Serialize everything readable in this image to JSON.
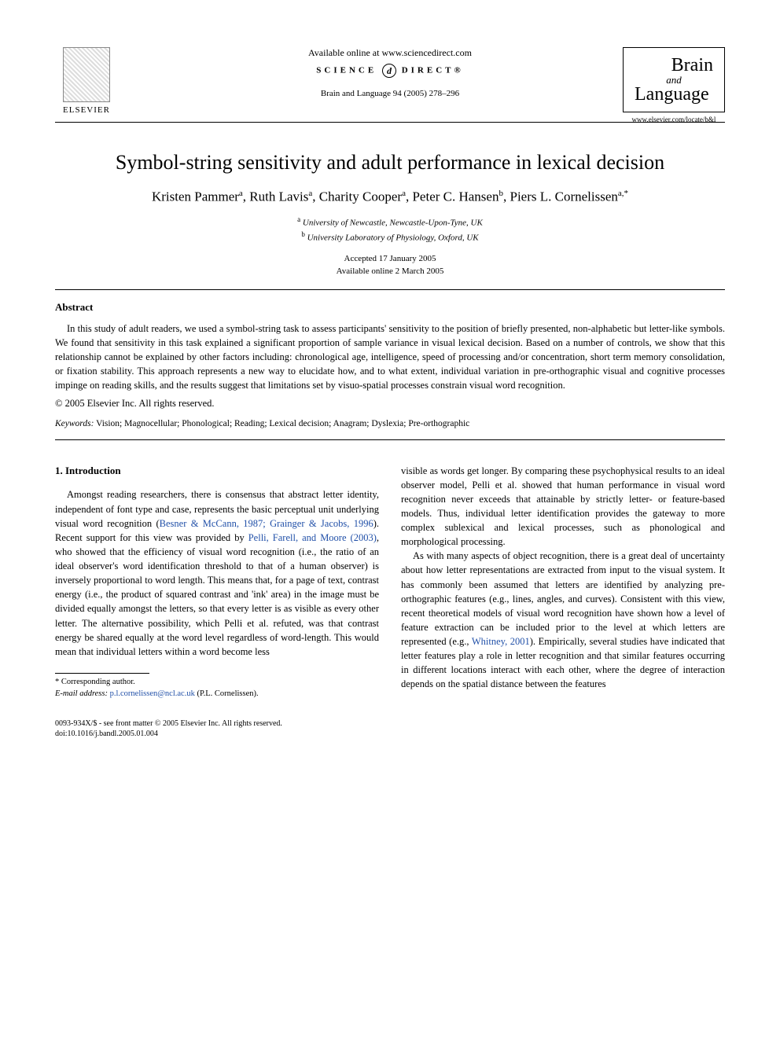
{
  "header": {
    "available_line": "Available online at www.sciencedirect.com",
    "sd_left": "SCIENCE",
    "sd_d": "d",
    "sd_right": "DIRECT®",
    "journal_ref": "Brain and Language 94 (2005) 278–296",
    "elsevier_name": "ELSEVIER",
    "journal_logo": {
      "brain": "Brain",
      "and": "and",
      "language": "Language"
    },
    "journal_url": "www.elsevier.com/locate/b&l"
  },
  "article": {
    "title": "Symbol-string sensitivity and adult performance in lexical decision",
    "authors_html": "Kristen Pammer<sup>a</sup>, Ruth Lavis<sup>a</sup>, Charity Cooper<sup>a</sup>, Peter C. Hansen<sup>b</sup>, Piers L. Cornelissen<sup>a,*</sup>",
    "aff_a": "<sup>a</sup> University of Newcastle, Newcastle-Upon-Tyne, UK",
    "aff_b": "<sup>b</sup> University Laboratory of Physiology, Oxford, UK",
    "accepted": "Accepted 17 January 2005",
    "online": "Available online 2 March 2005"
  },
  "abstract": {
    "heading": "Abstract",
    "body": "In this study of adult readers, we used a symbol-string task to assess participants' sensitivity to the position of briefly presented, non-alphabetic but letter-like symbols. We found that sensitivity in this task explained a significant proportion of sample variance in visual lexical decision. Based on a number of controls, we show that this relationship cannot be explained by other factors including: chronological age, intelligence, speed of processing and/or concentration, short term memory consolidation, or fixation stability. This approach represents a new way to elucidate how, and to what extent, individual variation in pre-orthographic visual and cognitive processes impinge on reading skills, and the results suggest that limitations set by visuo-spatial processes constrain visual word recognition.",
    "copyright": "© 2005 Elsevier Inc. All rights reserved."
  },
  "keywords": {
    "label": "Keywords:",
    "list": "Vision; Magnocellular; Phonological; Reading; Lexical decision; Anagram; Dyslexia; Pre-orthographic"
  },
  "intro": {
    "heading": "1. Introduction",
    "p1_a": "Amongst reading researchers, there is consensus that abstract letter identity, independent of font type and case, represents the basic perceptual unit underlying visual word recognition (",
    "p1_ref1": "Besner & McCann, 1987; Grainger & Jacobs, 1996",
    "p1_b": "). Recent support for this view was provided by ",
    "p1_ref2": "Pelli, Farell, and Moore (2003)",
    "p1_c": ", who showed that the efficiency of visual word recognition (i.e., the ratio of an ideal observer's word identification threshold to that of a human observer) is inversely proportional to word length. This means that, for a page of text, contrast energy (i.e., the product of squared contrast and 'ink' area) in the image must be divided equally amongst the letters, so that every letter is as visible as every other letter. The alternative possibility, which Pelli et al. refuted, was that contrast energy be shared equally at the word level regardless of word-length. This would mean that individual letters within a word become less",
    "p1_cont": "visible as words get longer. By comparing these psychophysical results to an ideal observer model, Pelli et al. showed that human performance in visual word recognition never exceeds that attainable by strictly letter- or feature-based models. Thus, individual letter identification provides the gateway to more complex sublexical and lexical processes, such as phonological and morphological processing.",
    "p2_a": "As with many aspects of object recognition, there is a great deal of uncertainty about how letter representations are extracted from input to the visual system. It has commonly been assumed that letters are identified by analyzing pre-orthographic features (e.g., lines, angles, and curves). Consistent with this view, recent theoretical models of visual word recognition have shown how a level of feature extraction can be included prior to the level at which letters are represented (e.g., ",
    "p2_ref1": "Whitney, 2001",
    "p2_b": "). Empirically, several studies have indicated that letter features play a role in letter recognition and that similar features occurring in different locations interact with each other, where the degree of interaction depends on the spatial distance between the features"
  },
  "footnote": {
    "corr": "* Corresponding author.",
    "email_label": "E-mail address:",
    "email": "p.l.cornelissen@ncl.ac.uk",
    "email_after": "(P.L. Cornelissen)."
  },
  "footer": {
    "line1": "0093-934X/$ - see front matter © 2005 Elsevier Inc. All rights reserved.",
    "line2": "doi:10.1016/j.bandl.2005.01.004"
  },
  "colors": {
    "link": "#2150a8",
    "text": "#000000",
    "bg": "#ffffff"
  }
}
